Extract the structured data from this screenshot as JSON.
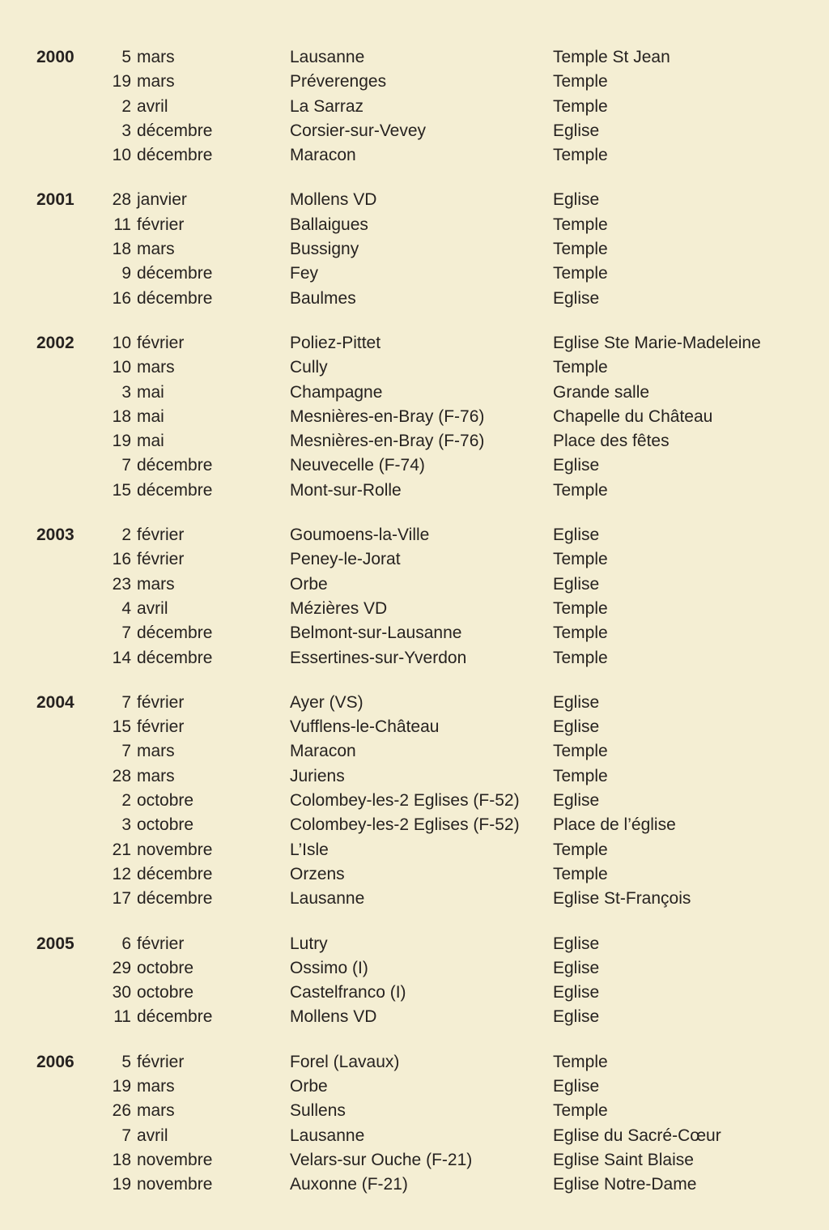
{
  "page": {
    "background_color": "#f4eed3",
    "text_color": "#262220",
    "description": "Chronological schedule of events per year: date, locality, venue"
  },
  "sections": [
    {
      "year": "2000",
      "rows": [
        {
          "day": "5",
          "month": "mars",
          "place": "Lausanne",
          "venue": "Temple St Jean"
        },
        {
          "day": "19",
          "month": "mars",
          "place": "Préverenges",
          "venue": "Temple"
        },
        {
          "day": "2",
          "month": "avril",
          "place": "La Sarraz",
          "venue": "Temple"
        },
        {
          "day": "3",
          "month": "décembre",
          "place": "Corsier-sur-Vevey",
          "venue": "Eglise"
        },
        {
          "day": "10",
          "month": "décembre",
          "place": "Maracon",
          "venue": "Temple"
        }
      ]
    },
    {
      "year": "2001",
      "rows": [
        {
          "day": "28",
          "month": "janvier",
          "place": "Mollens VD",
          "venue": "Eglise"
        },
        {
          "day": "11",
          "month": "février",
          "place": "Ballaigues",
          "venue": "Temple"
        },
        {
          "day": "18",
          "month": "mars",
          "place": "Bussigny",
          "venue": "Temple"
        },
        {
          "day": "9",
          "month": "décembre",
          "place": "Fey",
          "venue": "Temple"
        },
        {
          "day": "16",
          "month": "décembre",
          "place": "Baulmes",
          "venue": "Eglise"
        }
      ]
    },
    {
      "year": "2002",
      "rows": [
        {
          "day": "10",
          "month": "février",
          "place": "Poliez-Pittet",
          "venue": "Eglise Ste Marie-Madeleine"
        },
        {
          "day": "10",
          "month": "mars",
          "place": "Cully",
          "venue": "Temple"
        },
        {
          "day": "3",
          "month": "mai",
          "place": "Champagne",
          "venue": "Grande salle"
        },
        {
          "day": "18",
          "month": "mai",
          "place": "Mesnières-en-Bray (F-76)",
          "venue": "Chapelle du Château"
        },
        {
          "day": "19",
          "month": "mai",
          "place": "Mesnières-en-Bray (F-76)",
          "venue": "Place des fêtes"
        },
        {
          "day": "7",
          "month": "décembre",
          "place": "Neuvecelle (F-74)",
          "venue": "Eglise"
        },
        {
          "day": "15",
          "month": "décembre",
          "place": "Mont-sur-Rolle",
          "venue": "Temple"
        }
      ]
    },
    {
      "year": "2003",
      "rows": [
        {
          "day": "2",
          "month": "février",
          "place": "Goumoens-la-Ville",
          "venue": "Eglise"
        },
        {
          "day": "16",
          "month": "février",
          "place": "Peney-le-Jorat",
          "venue": "Temple"
        },
        {
          "day": "23",
          "month": "mars",
          "place": "Orbe",
          "venue": "Eglise"
        },
        {
          "day": "4",
          "month": "avril",
          "place": "Mézières VD",
          "venue": "Temple"
        },
        {
          "day": "7",
          "month": "décembre",
          "place": "Belmont-sur-Lausanne",
          "venue": "Temple"
        },
        {
          "day": "14",
          "month": "décembre",
          "place": "Essertines-sur-Yverdon",
          "venue": "Temple"
        }
      ]
    },
    {
      "year": "2004",
      "rows": [
        {
          "day": "7",
          "month": "février",
          "place": "Ayer (VS)",
          "venue": "Eglise"
        },
        {
          "day": "15",
          "month": "février",
          "place": "Vufflens-le-Château",
          "venue": "Eglise"
        },
        {
          "day": "7",
          "month": "mars",
          "place": "Maracon",
          "venue": "Temple"
        },
        {
          "day": "28",
          "month": "mars",
          "place": "Juriens",
          "venue": "Temple"
        },
        {
          "day": "2",
          "month": "octobre",
          "place": "Colombey-les-2 Eglises (F-52)",
          "venue": "Eglise"
        },
        {
          "day": "3",
          "month": "octobre",
          "place": "Colombey-les-2 Eglises (F-52)",
          "venue": "Place de l’église"
        },
        {
          "day": "21",
          "month": "novembre",
          "place": "L’Isle",
          "venue": "Temple"
        },
        {
          "day": "12",
          "month": "décembre",
          "place": "Orzens",
          "venue": "Temple"
        },
        {
          "day": "17",
          "month": "décembre",
          "place": "Lausanne",
          "venue": "Eglise St-François"
        }
      ]
    },
    {
      "year": "2005",
      "rows": [
        {
          "day": "6",
          "month": "février",
          "place": "Lutry",
          "venue": "Eglise"
        },
        {
          "day": "29",
          "month": "octobre",
          "place": "Ossimo (I)",
          "venue": "Eglise"
        },
        {
          "day": "30",
          "month": "octobre",
          "place": "Castelfranco (I)",
          "venue": "Eglise"
        },
        {
          "day": "11",
          "month": "décembre",
          "place": "Mollens VD",
          "venue": "Eglise"
        }
      ]
    },
    {
      "year": "2006",
      "rows": [
        {
          "day": "5",
          "month": "février",
          "place": "Forel (Lavaux)",
          "venue": "Temple"
        },
        {
          "day": "19",
          "month": "mars",
          "place": "Orbe",
          "venue": "Eglise"
        },
        {
          "day": "26",
          "month": "mars",
          "place": "Sullens",
          "venue": "Temple"
        },
        {
          "day": "7",
          "month": "avril",
          "place": "Lausanne",
          "venue": "Eglise du Sacré-Cœur"
        },
        {
          "day": "18",
          "month": "novembre",
          "place": "Velars-sur Ouche (F-21)",
          "venue": "Eglise Saint Blaise"
        },
        {
          "day": "19",
          "month": "novembre",
          "place": "Auxonne (F-21)",
          "venue": "Eglise Notre-Dame"
        }
      ]
    }
  ]
}
